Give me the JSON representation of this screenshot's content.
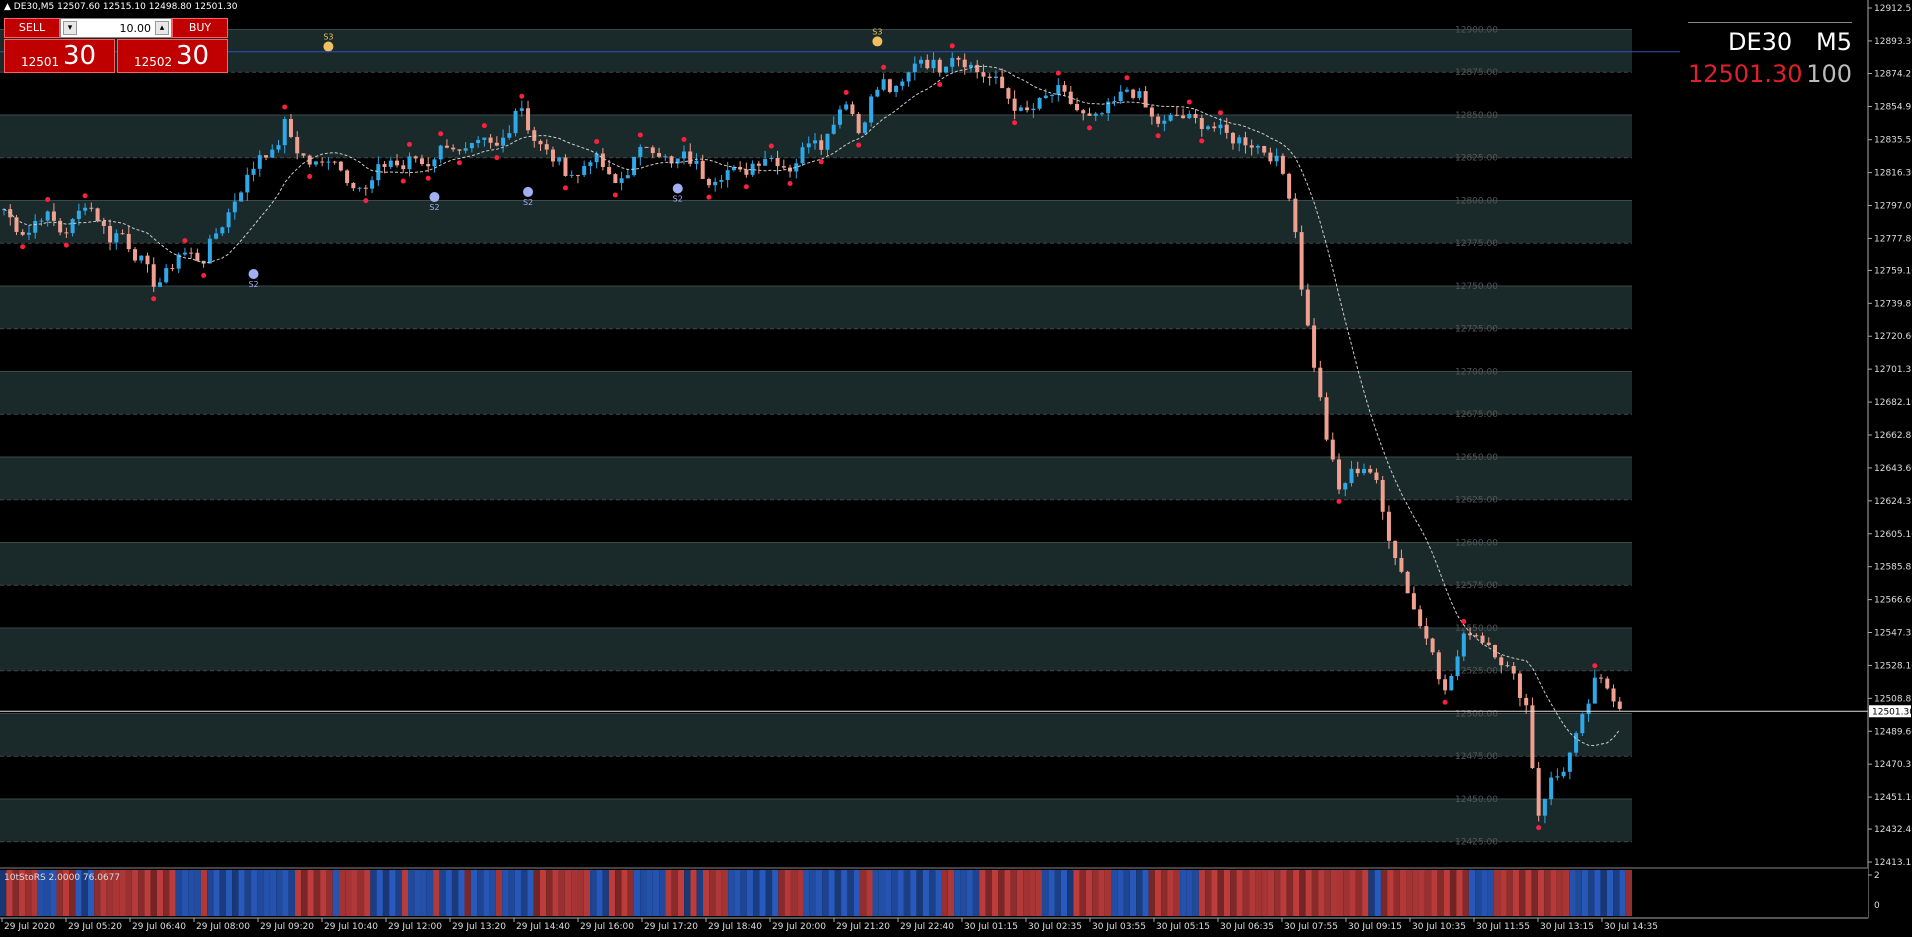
{
  "header": {
    "symbol_tf": "DE30,M5",
    "ohlc": "12507.60 12515.10 12498.80 12501.30"
  },
  "trade_panel": {
    "sell_label": "SELL",
    "buy_label": "BUY",
    "volume": "10.00",
    "sell_price_small": "12501",
    "sell_price_big": "30",
    "buy_price_small": "12502",
    "buy_price_big": "30"
  },
  "symbol_box": {
    "symbol": "DE30",
    "timeframe": "M5",
    "price": "12501.30",
    "spread": "100"
  },
  "indicator": {
    "label": "10tStoRS 2.0000 76.0677",
    "axis_max": "2",
    "axis_min": "0"
  },
  "colors": {
    "bull": "#2fa8e8",
    "bear": "#f0a090",
    "dot": "#ff2040",
    "band": "#1a2a2a",
    "background": "#000000"
  },
  "chart_data": {
    "type": "candlestick",
    "symbol": "DE30",
    "timeframe": "M5",
    "ylim": [
      12413.15,
      12912.55
    ],
    "right_axis_ticks": [
      "12912.55",
      "12893.30",
      "12874.25",
      "12854.95",
      "12835.55",
      "12816.30",
      "12797.05",
      "12777.80",
      "12759.10",
      "12739.85",
      "12720.60",
      "12701.35",
      "12682.10",
      "12662.85",
      "12643.60",
      "12624.35",
      "12605.10",
      "12585.85",
      "12566.60",
      "12547.35",
      "12528.10",
      "12508.85",
      "12489.60",
      "12470.35",
      "12451.10",
      "12432.40",
      "12413.15"
    ],
    "band_levels": [
      12900,
      12875,
      12850,
      12825,
      12800,
      12775,
      12750,
      12725,
      12700,
      12675,
      12650,
      12625,
      12600,
      12575,
      12550,
      12525,
      12500,
      12475,
      12450,
      12425
    ],
    "band_labels": [
      "12900.00",
      "12875.00",
      "12850.00",
      "12825.00",
      "12800.00",
      "12775.00",
      "12750.00",
      "12725.00",
      "12700.00",
      "12675.00",
      "12650.00",
      "12625.00",
      "12600.00",
      "12575.00",
      "12550.00",
      "12525.00",
      "12500.00",
      "12475.00",
      "12450.00",
      "12425.00"
    ],
    "time_labels": [
      "29 Jul 2020",
      "29 Jul 05:20",
      "29 Jul 06:40",
      "29 Jul 08:00",
      "29 Jul 09:20",
      "29 Jul 10:40",
      "29 Jul 12:00",
      "29 Jul 13:20",
      "29 Jul 14:40",
      "29 Jul 16:00",
      "29 Jul 17:20",
      "29 Jul 18:40",
      "29 Jul 20:00",
      "29 Jul 21:20",
      "29 Jul 22:40",
      "30 Jul 01:15",
      "30 Jul 02:35",
      "30 Jul 03:55",
      "30 Jul 05:15",
      "30 Jul 06:35",
      "30 Jul 07:55",
      "30 Jul 09:15",
      "30 Jul 10:35",
      "30 Jul 11:55",
      "30 Jul 13:15",
      "30 Jul 14:35"
    ],
    "bid_line": 12501.3,
    "bid_label": "12501.30",
    "resistance_line": 12887,
    "signals": [
      {
        "label": "S3",
        "price": 12890,
        "kind": "top"
      },
      {
        "label": "S3",
        "price": 12893,
        "kind": "top"
      },
      {
        "label": "S2",
        "price": 12757,
        "kind": "bottom"
      },
      {
        "label": "S2",
        "price": 12802,
        "kind": "bottom"
      },
      {
        "label": "S2",
        "price": 12805,
        "kind": "bottom"
      },
      {
        "label": "S2",
        "price": 12807,
        "kind": "bottom"
      }
    ],
    "path_points": [
      12795,
      12785,
      12780,
      12792,
      12790,
      12780,
      12788,
      12800,
      12790,
      12778,
      12782,
      12770,
      12762,
      12750,
      12758,
      12770,
      12768,
      12765,
      12780,
      12790,
      12805,
      12815,
      12830,
      12826,
      12845,
      12830,
      12822,
      12820,
      12828,
      12815,
      12810,
      12805,
      12818,
      12824,
      12818,
      12826,
      12820,
      12828,
      12835,
      12826,
      12830,
      12834,
      12830,
      12840,
      12860,
      12838,
      12830,
      12824,
      12818,
      12814,
      12826,
      12822,
      12808,
      12815,
      12825,
      12834,
      12828,
      12820,
      12826,
      12822,
      12812,
      12815,
      12818,
      12815,
      12822,
      12826,
      12824,
      12818,
      12826,
      12840,
      12832,
      12850,
      12860,
      12840,
      12858,
      12870,
      12862,
      12870,
      12885,
      12880,
      12878,
      12886,
      12882,
      12876,
      12872,
      12868,
      12858,
      12850,
      12854,
      12860,
      12864,
      12858,
      12850,
      12846,
      12852,
      12858,
      12866,
      12860,
      12848,
      12844,
      12850,
      12848,
      12846,
      12844,
      12840,
      12836,
      12835,
      12832,
      12828,
      12820,
      12800,
      12740,
      12700,
      12660,
      12630,
      12640,
      12645,
      12640,
      12610,
      12590,
      12570,
      12550,
      12540,
      12510,
      12530,
      12550,
      12545,
      12540,
      12530,
      12520,
      12505,
      12440,
      12460,
      12465,
      12480,
      12500,
      12520,
      12515,
      12505
    ]
  }
}
